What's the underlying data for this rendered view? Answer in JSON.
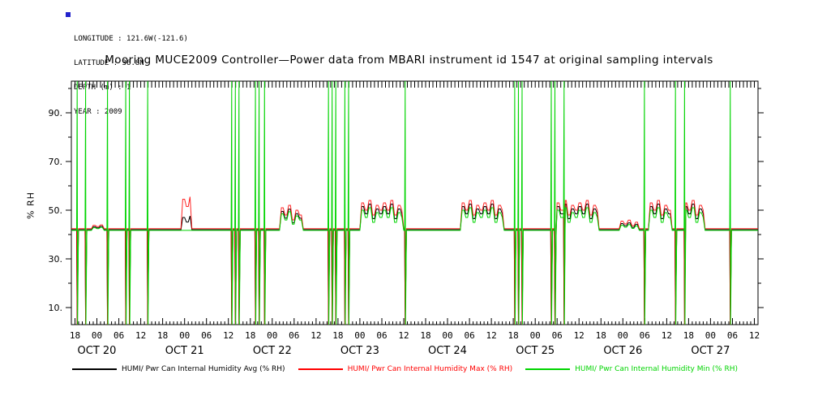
{
  "info": {
    "marker_color": "#2222cc",
    "lines": [
      "LONGITUDE : 121.6W(-121.6)",
      "LATITUDE : 36.8N",
      "DEPTH (m) : 1",
      "YEAR : 2009"
    ]
  },
  "chart_data": {
    "type": "line",
    "title": "Mooring MUCE2009 Controller—Power data from MBARI instrument id 1547 at original sampling intervals",
    "ylabel": "% RH",
    "ylim": [
      3,
      103
    ],
    "yticks": [
      10,
      30,
      50,
      70,
      90
    ],
    "ytick_suffix": ".",
    "yticks_minor": [
      20,
      40,
      60,
      80,
      100
    ],
    "x_unit": "hours since 2009-10-19 00:00",
    "xlim": [
      17,
      205
    ],
    "xticks_minor_step": 1,
    "xticks": [
      {
        "t": 18,
        "label": "18"
      },
      {
        "t": 24,
        "label": "00"
      },
      {
        "t": 30,
        "label": "06"
      },
      {
        "t": 36,
        "label": "12"
      },
      {
        "t": 42,
        "label": "18"
      },
      {
        "t": 48,
        "label": "00"
      },
      {
        "t": 54,
        "label": "06"
      },
      {
        "t": 60,
        "label": "12"
      },
      {
        "t": 66,
        "label": "18"
      },
      {
        "t": 72,
        "label": "00"
      },
      {
        "t": 78,
        "label": "06"
      },
      {
        "t": 84,
        "label": "12"
      },
      {
        "t": 90,
        "label": "18"
      },
      {
        "t": 96,
        "label": "00"
      },
      {
        "t": 102,
        "label": "06"
      },
      {
        "t": 108,
        "label": "12"
      },
      {
        "t": 114,
        "label": "18"
      },
      {
        "t": 120,
        "label": "00"
      },
      {
        "t": 126,
        "label": "06"
      },
      {
        "t": 132,
        "label": "12"
      },
      {
        "t": 138,
        "label": "18"
      },
      {
        "t": 144,
        "label": "00"
      },
      {
        "t": 150,
        "label": "06"
      },
      {
        "t": 156,
        "label": "12"
      },
      {
        "t": 162,
        "label": "18"
      },
      {
        "t": 168,
        "label": "00"
      },
      {
        "t": 174,
        "label": "06"
      },
      {
        "t": 180,
        "label": "12"
      },
      {
        "t": 186,
        "label": "18"
      },
      {
        "t": 192,
        "label": "00"
      },
      {
        "t": 198,
        "label": "06"
      },
      {
        "t": 204,
        "label": "12"
      }
    ],
    "day_labels": [
      {
        "t": 24,
        "label": "OCT 20"
      },
      {
        "t": 48,
        "label": "OCT 21"
      },
      {
        "t": 72,
        "label": "OCT 22"
      },
      {
        "t": 96,
        "label": "OCT 23"
      },
      {
        "t": 120,
        "label": "OCT 24"
      },
      {
        "t": 144,
        "label": "OCT 25"
      },
      {
        "t": 168,
        "label": "OCT 26"
      },
      {
        "t": 192,
        "label": "OCT 27"
      }
    ],
    "series": [
      {
        "name": "HUMI/ Pwr Can Internal Humidity Avg (% RH)",
        "color": "#000000",
        "baseline": 42,
        "spike_shape": [
          3
        ],
        "spike_times": [
          18.7,
          21,
          27,
          32,
          33,
          38,
          61,
          62,
          63,
          67.5,
          68.5,
          70,
          87.5,
          88.5,
          89.5,
          92,
          93,
          108.5,
          138.5,
          139.5,
          140.5,
          148.5,
          149.5,
          152,
          174,
          182.5,
          185,
          197.5
        ],
        "bumps": [
          [
            23,
            25.5,
            43.2
          ],
          [
            47.3,
            49.6,
            47
          ],
          [
            74.5,
            80,
            49.5
          ],
          [
            96.5,
            107.5,
            51.5
          ],
          [
            124,
            135,
            51.5
          ],
          [
            150,
            161,
            51.5
          ],
          [
            167.5,
            172,
            44.5
          ],
          [
            175.5,
            181,
            51.5
          ],
          [
            185,
            190,
            51.5
          ]
        ]
      },
      {
        "name": "HUMI/ Pwr Can Internal Humidity Max (% RH)",
        "color": "#ff0000",
        "baseline": 42.4,
        "spike_shape": [
          3
        ],
        "spike_times": [
          18.7,
          21,
          27,
          32,
          33,
          38,
          61,
          62,
          63,
          67.5,
          68.5,
          70,
          87.5,
          88.5,
          89.5,
          92,
          93,
          108.5,
          138.5,
          139.5,
          140.5,
          148.5,
          149.5,
          152,
          174,
          182.5,
          185,
          197.5
        ],
        "bumps": [
          [
            23,
            25.5,
            43.8
          ],
          [
            47.3,
            49.6,
            54.5
          ],
          [
            74.5,
            80,
            51
          ],
          [
            96.5,
            107.5,
            53
          ],
          [
            124,
            135,
            53
          ],
          [
            150,
            161,
            53
          ],
          [
            167.5,
            172,
            45.5
          ],
          [
            175.5,
            181,
            53
          ],
          [
            185,
            190,
            53
          ]
        ]
      },
      {
        "name": "HUMI/ Pwr Can Internal Humidity Min (% RH)",
        "color": "#00d400",
        "baseline": 41.7,
        "spike_shape": [
          103,
          3
        ],
        "spike_times": [
          18.7,
          21,
          27,
          32,
          33,
          38,
          61,
          62,
          63,
          67.5,
          68.5,
          70,
          87.5,
          88.5,
          89.5,
          92,
          93,
          108.5,
          138.5,
          139.5,
          140.5,
          148.5,
          149.5,
          152,
          174,
          182.5,
          185,
          197.5
        ],
        "bumps": [
          [
            23,
            25.5,
            42.8
          ],
          [
            74.5,
            80,
            48.5
          ],
          [
            96.5,
            107.5,
            50
          ],
          [
            124,
            135,
            50
          ],
          [
            150,
            161,
            50
          ],
          [
            167.5,
            172,
            43.8
          ],
          [
            175.5,
            181,
            50
          ],
          [
            185,
            190,
            50
          ]
        ]
      }
    ]
  }
}
